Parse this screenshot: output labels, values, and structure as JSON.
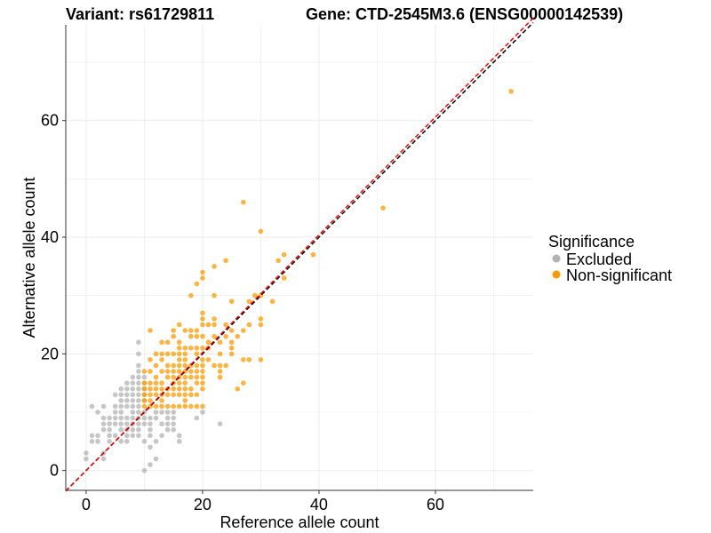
{
  "chart_data": {
    "type": "scatter",
    "title_left": "Variant: rs61729811",
    "title_right": "Gene: CTD-2545M3.6 (ENSG00000142539)",
    "xlabel": "Reference allele count",
    "ylabel": "Alternative allele count",
    "xlim": [
      -3.5,
      76.8
    ],
    "ylim": [
      -3.4,
      76.4
    ],
    "xticks": [
      0,
      20,
      40,
      60
    ],
    "yticks": [
      0,
      20,
      40,
      60
    ],
    "grid": true,
    "legend": {
      "title": "Significance",
      "placement": "right",
      "entries": [
        {
          "label": "Excluded",
          "color": "#b3b3b3"
        },
        {
          "label": "Non-significant",
          "color": "#ff9900"
        }
      ]
    },
    "lines": [
      {
        "name": "identity",
        "slope": 1.0,
        "intercept": 0,
        "color": "#000000",
        "dash": true
      },
      {
        "name": "fit",
        "slope": 1.01,
        "intercept": 0,
        "color": "#ff0000",
        "dash": true
      }
    ],
    "series": [
      {
        "name": "Excluded",
        "color": "#b3b3b3",
        "points": [
          [
            9,
            22
          ],
          [
            9,
            20
          ],
          [
            9,
            18
          ],
          [
            9,
            17
          ],
          [
            8,
            16
          ],
          [
            9,
            16
          ],
          [
            10,
            16
          ],
          [
            7,
            15
          ],
          [
            8,
            15
          ],
          [
            9,
            15
          ],
          [
            10,
            15
          ],
          [
            6,
            14
          ],
          [
            7,
            14
          ],
          [
            8,
            14
          ],
          [
            9,
            14
          ],
          [
            10,
            14
          ],
          [
            5,
            13
          ],
          [
            6,
            13
          ],
          [
            7,
            13
          ],
          [
            8,
            13
          ],
          [
            9,
            13
          ],
          [
            10,
            13
          ],
          [
            6,
            12
          ],
          [
            7,
            12
          ],
          [
            8,
            12
          ],
          [
            9,
            12
          ],
          [
            10,
            12
          ],
          [
            1,
            11
          ],
          [
            3,
            11
          ],
          [
            5,
            11
          ],
          [
            6,
            11
          ],
          [
            7,
            11
          ],
          [
            8,
            11
          ],
          [
            9,
            11
          ],
          [
            2,
            10
          ],
          [
            5,
            10
          ],
          [
            6,
            10
          ],
          [
            8,
            10
          ],
          [
            9,
            10
          ],
          [
            10,
            10
          ],
          [
            12,
            10
          ],
          [
            13,
            10
          ],
          [
            14,
            10
          ],
          [
            15,
            10
          ],
          [
            20,
            10
          ],
          [
            3,
            9
          ],
          [
            4,
            9
          ],
          [
            5,
            9
          ],
          [
            6,
            9
          ],
          [
            7,
            9
          ],
          [
            8,
            9
          ],
          [
            9,
            9
          ],
          [
            10,
            9
          ],
          [
            11,
            9
          ],
          [
            12,
            9
          ],
          [
            14,
            9
          ],
          [
            15,
            9
          ],
          [
            19,
            9
          ],
          [
            23,
            8
          ],
          [
            3,
            8
          ],
          [
            4,
            8
          ],
          [
            5,
            8
          ],
          [
            6,
            8
          ],
          [
            7,
            8
          ],
          [
            8,
            8
          ],
          [
            9,
            8
          ],
          [
            10,
            8
          ],
          [
            11,
            8
          ],
          [
            13,
            8
          ],
          [
            14,
            8
          ],
          [
            15,
            8
          ],
          [
            3,
            7
          ],
          [
            4,
            7
          ],
          [
            6,
            7
          ],
          [
            7,
            7
          ],
          [
            8,
            7
          ],
          [
            9,
            7
          ],
          [
            11,
            7
          ],
          [
            14,
            7
          ],
          [
            15,
            7
          ],
          [
            1,
            6
          ],
          [
            2,
            6
          ],
          [
            4,
            6
          ],
          [
            5,
            6
          ],
          [
            7,
            6
          ],
          [
            8,
            6
          ],
          [
            9,
            6
          ],
          [
            11,
            6
          ],
          [
            13,
            6
          ],
          [
            16,
            6
          ],
          [
            1,
            5
          ],
          [
            2,
            5
          ],
          [
            4,
            5
          ],
          [
            6,
            5
          ],
          [
            7,
            5
          ],
          [
            10,
            5
          ],
          [
            12,
            5
          ],
          [
            16,
            5
          ],
          [
            0,
            3
          ],
          [
            0,
            2
          ],
          [
            3,
            3
          ],
          [
            3,
            2
          ],
          [
            11,
            1
          ],
          [
            10,
            0
          ],
          [
            12,
            2
          ],
          [
            11,
            4
          ]
        ]
      },
      {
        "name": "Non-significant",
        "color": "#ff9900",
        "points": [
          [
            27,
            46
          ],
          [
            30,
            41
          ],
          [
            24,
            36
          ],
          [
            22,
            35
          ],
          [
            20,
            34
          ],
          [
            20,
            33
          ],
          [
            19,
            32
          ],
          [
            18,
            30
          ],
          [
            22,
            30
          ],
          [
            25,
            29
          ],
          [
            34,
            37
          ],
          [
            33,
            36
          ],
          [
            39,
            37
          ],
          [
            34,
            33
          ],
          [
            29,
            30
          ],
          [
            30,
            30
          ],
          [
            32,
            29
          ],
          [
            28,
            29
          ],
          [
            51,
            45
          ],
          [
            73,
            65
          ],
          [
            20,
            27
          ],
          [
            20,
            26
          ],
          [
            22,
            26
          ],
          [
            20,
            25
          ],
          [
            21,
            25
          ],
          [
            22,
            25
          ],
          [
            24,
            25
          ],
          [
            28,
            25
          ],
          [
            30,
            26
          ],
          [
            30,
            25
          ],
          [
            16,
            25
          ],
          [
            11,
            24
          ],
          [
            15,
            24
          ],
          [
            17,
            24
          ],
          [
            18,
            24
          ],
          [
            19,
            24
          ],
          [
            25,
            24
          ],
          [
            27,
            24
          ],
          [
            15,
            23
          ],
          [
            18,
            23
          ],
          [
            19,
            23
          ],
          [
            20,
            23
          ],
          [
            22,
            23
          ],
          [
            24,
            23
          ],
          [
            26,
            23
          ],
          [
            13,
            22
          ],
          [
            14,
            22
          ],
          [
            16,
            22
          ],
          [
            21,
            22
          ],
          [
            23,
            22
          ],
          [
            25,
            22
          ],
          [
            16,
            21
          ],
          [
            17,
            21
          ],
          [
            18,
            21
          ],
          [
            19,
            21
          ],
          [
            20,
            21
          ],
          [
            21,
            21
          ],
          [
            25,
            21
          ],
          [
            12,
            20
          ],
          [
            13,
            20
          ],
          [
            14,
            20
          ],
          [
            15,
            20
          ],
          [
            16,
            20
          ],
          [
            17,
            20
          ],
          [
            19,
            20
          ],
          [
            23,
            20
          ],
          [
            25,
            20
          ],
          [
            28,
            19
          ],
          [
            30,
            19
          ],
          [
            11,
            19
          ],
          [
            13,
            19
          ],
          [
            16,
            19
          ],
          [
            17,
            19
          ],
          [
            20,
            19
          ],
          [
            21,
            19
          ],
          [
            27,
            19
          ],
          [
            12,
            18
          ],
          [
            14,
            18
          ],
          [
            15,
            18
          ],
          [
            16,
            18
          ],
          [
            17,
            18
          ],
          [
            18,
            18
          ],
          [
            19,
            18
          ],
          [
            20,
            18
          ],
          [
            22,
            18
          ],
          [
            23,
            18
          ],
          [
            24,
            18
          ],
          [
            10,
            17
          ],
          [
            11,
            17
          ],
          [
            13,
            17
          ],
          [
            14,
            17
          ],
          [
            15,
            17
          ],
          [
            16,
            17
          ],
          [
            17,
            17
          ],
          [
            18,
            17
          ],
          [
            19,
            17
          ],
          [
            20,
            17
          ],
          [
            23,
            17
          ],
          [
            27,
            15
          ],
          [
            26,
            14
          ],
          [
            12,
            16
          ],
          [
            14,
            16
          ],
          [
            15,
            16
          ],
          [
            16,
            16
          ],
          [
            17,
            16
          ],
          [
            18,
            16
          ],
          [
            19,
            16
          ],
          [
            20,
            16
          ],
          [
            23,
            16
          ],
          [
            10,
            15
          ],
          [
            11,
            15
          ],
          [
            12,
            15
          ],
          [
            13,
            15
          ],
          [
            15,
            15
          ],
          [
            16,
            15
          ],
          [
            17,
            15
          ],
          [
            19,
            15
          ],
          [
            20,
            15
          ],
          [
            10,
            14
          ],
          [
            11,
            14
          ],
          [
            12,
            14
          ],
          [
            13,
            14
          ],
          [
            14,
            14
          ],
          [
            15,
            14
          ],
          [
            16,
            14
          ],
          [
            17,
            14
          ],
          [
            18,
            14
          ],
          [
            20,
            14
          ],
          [
            10,
            13
          ],
          [
            11,
            13
          ],
          [
            12,
            13
          ],
          [
            13,
            13
          ],
          [
            14,
            13
          ],
          [
            15,
            13
          ],
          [
            16,
            13
          ],
          [
            17,
            13
          ],
          [
            18,
            13
          ],
          [
            19,
            13
          ],
          [
            10,
            12
          ],
          [
            11,
            12
          ],
          [
            13,
            12
          ],
          [
            17,
            12
          ],
          [
            10,
            11
          ],
          [
            11,
            11
          ],
          [
            12,
            11
          ],
          [
            13,
            11
          ],
          [
            14,
            11
          ],
          [
            15,
            11
          ],
          [
            16,
            11
          ],
          [
            17,
            11
          ],
          [
            18,
            11
          ],
          [
            19,
            11
          ],
          [
            20,
            11
          ]
        ]
      }
    ]
  }
}
